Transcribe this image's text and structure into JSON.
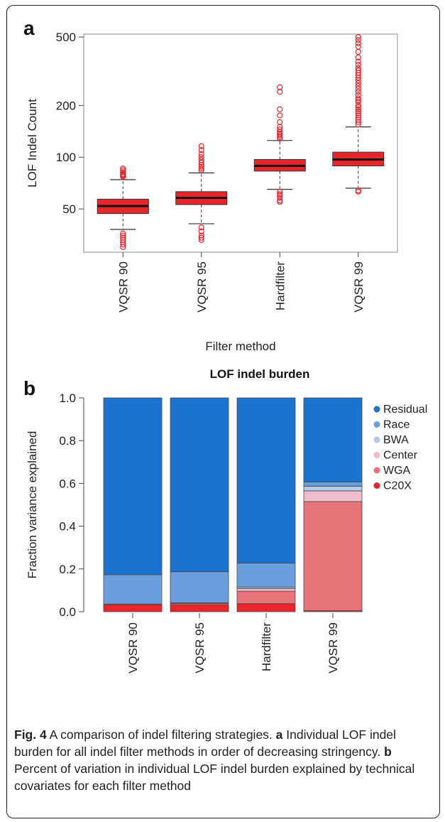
{
  "chart_data": [
    {
      "type": "box",
      "panel_label": "a",
      "xlabel": "Filter method",
      "ylabel": "LOF Indel Count",
      "yscale": "log",
      "ylim": [
        28,
        520
      ],
      "yticks": [
        50,
        100,
        200,
        500
      ],
      "categories": [
        "VQSR 90",
        "VQSR 95",
        "Hardfilter",
        "VQSR 99"
      ],
      "colors": {
        "box": "#e8252b",
        "median": "#111111",
        "outlier": "#e8252b"
      },
      "boxes": [
        {
          "category": "VQSR 90",
          "q1": 47,
          "median": 52,
          "q3": 57,
          "whisker_low": 38,
          "whisker_high": 74,
          "outliers": [
            77,
            78,
            79,
            80,
            82,
            84,
            86,
            36,
            35,
            34,
            33,
            32,
            31,
            30
          ]
        },
        {
          "category": "VQSR 95",
          "q1": 53,
          "median": 58,
          "q3": 63,
          "whisker_low": 41,
          "whisker_high": 81,
          "outliers": [
            84,
            86,
            88,
            90,
            93,
            96,
            100,
            104,
            110,
            116,
            39,
            37,
            35,
            34,
            33
          ]
        },
        {
          "category": "Hardfilter",
          "q1": 83,
          "median": 89,
          "q3": 97,
          "whisker_low": 65,
          "whisker_high": 125,
          "outliers": [
            128,
            131,
            134,
            137,
            140,
            145,
            150,
            160,
            175,
            190,
            240,
            255,
            63,
            61,
            60,
            58,
            56,
            55
          ]
        },
        {
          "category": "VQSR 99",
          "q1": 89,
          "median": 97,
          "q3": 107,
          "whisker_low": 66,
          "whisker_high": 150,
          "outliers": [
            155,
            160,
            165,
            170,
            175,
            180,
            185,
            190,
            195,
            200,
            210,
            215,
            220,
            230,
            240,
            250,
            260,
            270,
            280,
            290,
            300,
            310,
            320,
            330,
            345,
            360,
            380,
            410,
            440,
            460,
            480,
            500,
            64,
            63
          ]
        }
      ]
    },
    {
      "type": "stacked_bar",
      "panel_label": "b",
      "title": "LOF indel burden",
      "ylabel": "Fraction variance explained",
      "ylim": [
        0,
        1
      ],
      "yticks": [
        "0.0",
        "0.2",
        "0.4",
        "0.6",
        "0.8",
        "1.0"
      ],
      "categories": [
        "VQSR 90",
        "VQSR 95",
        "Hardfilter",
        "VQSR 99"
      ],
      "legend_position": "right",
      "series": [
        {
          "name": "C20X",
          "color": "#e8252b",
          "values": [
            0.033,
            0.033,
            0.038,
            0.005
          ]
        },
        {
          "name": "WGA",
          "color": "#e8737b",
          "values": [
            0.003,
            0.006,
            0.058,
            0.51
          ]
        },
        {
          "name": "Center",
          "color": "#efbccb",
          "values": [
            0.0,
            0.003,
            0.012,
            0.05
          ]
        },
        {
          "name": "BWA",
          "color": "#b5cbea",
          "values": [
            0.0,
            0.0,
            0.007,
            0.022
          ]
        },
        {
          "name": "Race",
          "color": "#6a9fdd",
          "values": [
            0.137,
            0.145,
            0.112,
            0.019
          ]
        },
        {
          "name": "Residual",
          "color": "#1a73cc",
          "values": [
            0.827,
            0.813,
            0.773,
            0.394
          ]
        }
      ],
      "legend_order": [
        "Residual",
        "Race",
        "BWA",
        "Center",
        "WGA",
        "C20X"
      ]
    }
  ],
  "caption": {
    "fig_label": "Fig. 4",
    "text_1": " A comparison of indel filtering strategies. ",
    "a_label": "a",
    "text_2": " Individual LOF indel burden for all indel filter methods in order of decreasing stringency. ",
    "b_label": "b",
    "text_3": " Percent of variation in individual LOF indel burden explained by technical covariates for each filter method"
  }
}
